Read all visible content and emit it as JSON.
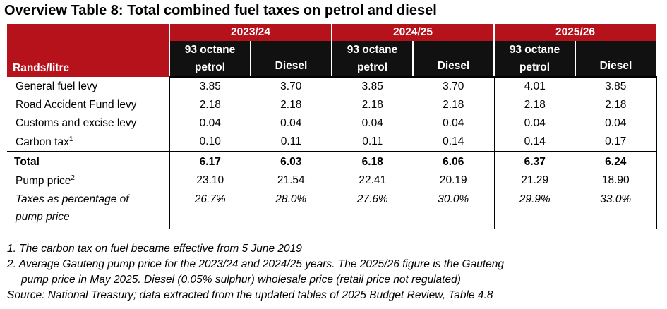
{
  "title": "Overview Table 8: Total combined fuel taxes on petrol and diesel",
  "header": {
    "row_label": "Rands/litre",
    "years": [
      "2023/24",
      "2024/25",
      "2025/26"
    ],
    "col_petrol_line1": "93 octane",
    "col_petrol_line2": "petrol",
    "col_diesel": "Diesel"
  },
  "rows": [
    {
      "label": "General fuel levy",
      "sup": "",
      "values": [
        "3.85",
        "3.70",
        "3.85",
        "3.70",
        "4.01",
        "3.85"
      ]
    },
    {
      "label": "Road Accident Fund levy",
      "sup": "",
      "values": [
        "2.18",
        "2.18",
        "2.18",
        "2.18",
        "2.18",
        "2.18"
      ]
    },
    {
      "label": "Customs and excise levy",
      "sup": "",
      "values": [
        "0.04",
        "0.04",
        "0.04",
        "0.04",
        "0.04",
        "0.04"
      ]
    },
    {
      "label": "Carbon tax",
      "sup": "1",
      "values": [
        "0.10",
        "0.11",
        "0.11",
        "0.14",
        "0.14",
        "0.17"
      ]
    }
  ],
  "total": {
    "label": "Total",
    "values": [
      "6.17",
      "6.03",
      "6.18",
      "6.06",
      "6.37",
      "6.24"
    ]
  },
  "pump": {
    "label": "Pump price",
    "sup": "2",
    "values": [
      "23.10",
      "21.54",
      "22.41",
      "20.19",
      "21.29",
      "18.90"
    ]
  },
  "pct": {
    "label_line1": "Taxes as percentage of",
    "label_line2": "pump price",
    "values": [
      "26.7%",
      "28.0%",
      "27.6%",
      "30.0%",
      "29.9%",
      "33.0%"
    ]
  },
  "notes": [
    "1. The carbon tax on fuel became effective from 5 June 2019",
    "2. Average Gauteng pump price for the 2023/24 and 2024/25 years. The 2025/26 figure is the Gauteng",
    "pump price in May 2025. Diesel (0.05% sulphur) wholesale price (retail price not regulated)",
    "Source: National Treasury; data extracted from the updated tables of 2025 Budget Review, Table 4.8"
  ]
}
